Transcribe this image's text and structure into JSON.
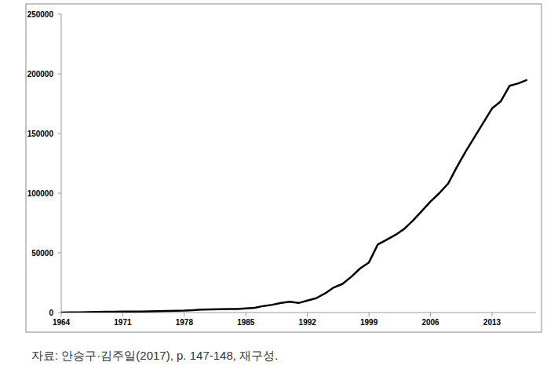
{
  "chart_data": {
    "type": "line",
    "source": "자료: 안승구·김주일(2017), p. 147-148, 재구성.",
    "x": [
      1964,
      1965,
      1966,
      1967,
      1968,
      1969,
      1970,
      1971,
      1972,
      1973,
      1974,
      1975,
      1976,
      1977,
      1978,
      1979,
      1980,
      1981,
      1982,
      1983,
      1984,
      1985,
      1986,
      1987,
      1988,
      1989,
      1990,
      1991,
      1992,
      1993,
      1994,
      1995,
      1996,
      1997,
      1998,
      1999,
      2000,
      2001,
      2002,
      2003,
      2004,
      2005,
      2006,
      2007,
      2008,
      2009,
      2010,
      2011,
      2012,
      2013,
      2014,
      2015,
      2016,
      2017
    ],
    "series": [
      {
        "color": "#000000",
        "values": [
          0,
          100,
          200,
          300,
          500,
          600,
          700,
          800,
          900,
          900,
          1000,
          1100,
          1300,
          1500,
          1600,
          2000,
          2500,
          2700,
          2800,
          2900,
          3000,
          3500,
          4000,
          5500,
          6500,
          8000,
          9000,
          8000,
          10000,
          12000,
          16000,
          21000,
          24000,
          30000,
          37000,
          42000,
          57000,
          61000,
          65000,
          70000,
          77000,
          85000,
          93000,
          100000,
          108000,
          122000,
          135000,
          147000,
          159000,
          171000,
          177000,
          190000,
          192000,
          195000
        ]
      }
    ],
    "xlim": [
      1964,
      2018
    ],
    "xticks": [
      1964,
      1971,
      1978,
      1985,
      1992,
      1999,
      2006,
      2013
    ],
    "ylim": [
      0,
      250000
    ],
    "yticks": [
      0,
      50000,
      100000,
      150000,
      200000,
      250000
    ],
    "grid": false
  }
}
